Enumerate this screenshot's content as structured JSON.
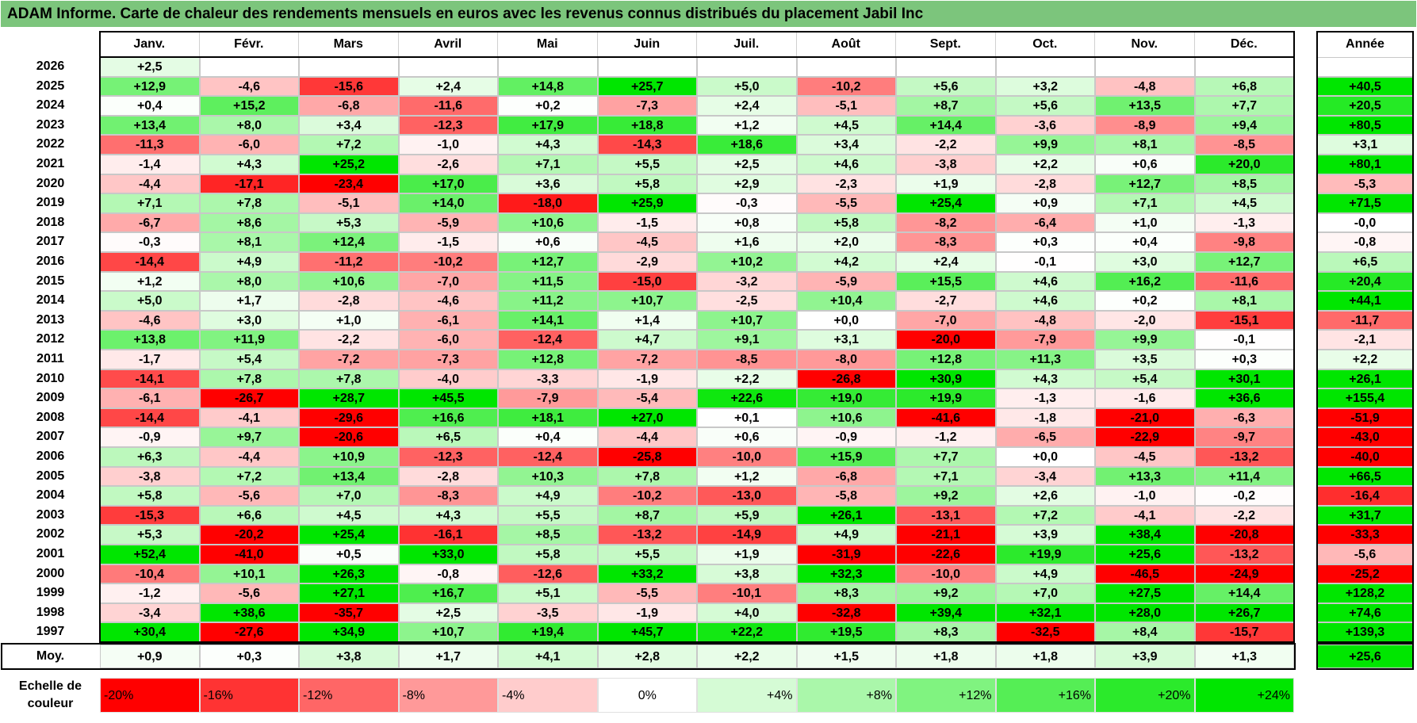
{
  "title": "ADAM Informe. Carte de chaleur des rendements mensuels en euros avec les revenus connus distribués du placement Jabil Inc",
  "chart_data": {
    "type": "heatmap",
    "columns": [
      "Janv.",
      "Févr.",
      "Mars",
      "Avril",
      "Mai",
      "Juin",
      "Juil.",
      "Août",
      "Sept.",
      "Oct.",
      "Nov.",
      "Déc."
    ],
    "year_column_label": "Année",
    "rows": [
      {
        "year": "2026",
        "values": [
          "+2,5",
          null,
          null,
          null,
          null,
          null,
          null,
          null,
          null,
          null,
          null,
          null
        ],
        "annual": null
      },
      {
        "year": "2025",
        "values": [
          "+12,9",
          "-4,6",
          "-15,6",
          "+2,4",
          "+14,8",
          "+25,7",
          "+5,0",
          "-10,2",
          "+5,6",
          "+3,2",
          "-4,8",
          "+6,8"
        ],
        "annual": "+40,5"
      },
      {
        "year": "2024",
        "values": [
          "+0,4",
          "+15,2",
          "-6,8",
          "-11,6",
          "+0,2",
          "-7,3",
          "+2,4",
          "-5,1",
          "+8,7",
          "+5,6",
          "+13,5",
          "+7,7"
        ],
        "annual": "+20,5"
      },
      {
        "year": "2023",
        "values": [
          "+13,4",
          "+8,0",
          "+3,4",
          "-12,3",
          "+17,9",
          "+18,8",
          "+1,2",
          "+4,5",
          "+14,4",
          "-3,6",
          "-8,9",
          "+9,4"
        ],
        "annual": "+80,5"
      },
      {
        "year": "2022",
        "values": [
          "-11,3",
          "-6,0",
          "+7,2",
          "-1,0",
          "+4,3",
          "-14,3",
          "+18,6",
          "+3,4",
          "-2,2",
          "+9,9",
          "+8,1",
          "-8,5"
        ],
        "annual": "+3,1"
      },
      {
        "year": "2021",
        "values": [
          "-1,4",
          "+4,3",
          "+25,2",
          "-2,6",
          "+7,1",
          "+5,5",
          "+2,5",
          "+4,6",
          "-3,8",
          "+2,2",
          "+0,6",
          "+20,0"
        ],
        "annual": "+80,1"
      },
      {
        "year": "2020",
        "values": [
          "-4,4",
          "-17,1",
          "-23,4",
          "+17,0",
          "+3,6",
          "+5,8",
          "+2,9",
          "-2,3",
          "+1,9",
          "-2,8",
          "+12,7",
          "+8,5"
        ],
        "annual": "-5,3"
      },
      {
        "year": "2019",
        "values": [
          "+7,1",
          "+7,8",
          "-5,1",
          "+14,0",
          "-18,0",
          "+25,9",
          "-0,3",
          "-5,5",
          "+25,4",
          "+0,9",
          "+7,1",
          "+4,5"
        ],
        "annual": "+71,5"
      },
      {
        "year": "2018",
        "values": [
          "-6,7",
          "+8,6",
          "+5,3",
          "-5,9",
          "+10,6",
          "-1,5",
          "+0,8",
          "+5,8",
          "-8,2",
          "-6,4",
          "+1,0",
          "-1,3"
        ],
        "annual": "-0,0"
      },
      {
        "year": "2017",
        "values": [
          "-0,3",
          "+8,1",
          "+12,4",
          "-1,5",
          "+0,6",
          "-4,5",
          "+1,6",
          "+2,0",
          "-8,3",
          "+0,3",
          "+0,4",
          "-9,8"
        ],
        "annual": "-0,8"
      },
      {
        "year": "2016",
        "values": [
          "-14,4",
          "+4,9",
          "-11,2",
          "-10,2",
          "+12,7",
          "-2,9",
          "+10,2",
          "+4,2",
          "+2,4",
          "-0,1",
          "+3,0",
          "+12,7"
        ],
        "annual": "+6,5"
      },
      {
        "year": "2015",
        "values": [
          "+1,2",
          "+8,0",
          "+10,6",
          "-7,0",
          "+11,5",
          "-15,0",
          "-3,2",
          "-5,9",
          "+15,5",
          "+4,6",
          "+16,2",
          "-11,6"
        ],
        "annual": "+20,4"
      },
      {
        "year": "2014",
        "values": [
          "+5,0",
          "+1,7",
          "-2,8",
          "-4,6",
          "+11,2",
          "+10,7",
          "-2,5",
          "+10,4",
          "-2,7",
          "+4,6",
          "+0,2",
          "+8,1"
        ],
        "annual": "+44,1"
      },
      {
        "year": "2013",
        "values": [
          "-4,6",
          "+3,0",
          "+1,0",
          "-6,1",
          "+14,1",
          "+1,4",
          "+10,7",
          "+0,0",
          "-7,0",
          "-4,8",
          "-2,0",
          "-15,1"
        ],
        "annual": "-11,7"
      },
      {
        "year": "2012",
        "values": [
          "+13,8",
          "+11,9",
          "-2,2",
          "-6,0",
          "-12,4",
          "+4,7",
          "+9,1",
          "+3,1",
          "-20,0",
          "-7,9",
          "+9,9",
          "-0,1"
        ],
        "annual": "-2,1"
      },
      {
        "year": "2011",
        "values": [
          "-1,7",
          "+5,4",
          "-7,2",
          "-7,3",
          "+12,8",
          "-7,2",
          "-8,5",
          "-8,0",
          "+12,8",
          "+11,3",
          "+3,5",
          "+0,3"
        ],
        "annual": "+2,2"
      },
      {
        "year": "2010",
        "values": [
          "-14,1",
          "+7,8",
          "+7,8",
          "-4,0",
          "-3,3",
          "-1,9",
          "+2,2",
          "-26,8",
          "+30,9",
          "+4,3",
          "+5,4",
          "+30,1"
        ],
        "annual": "+26,1"
      },
      {
        "year": "2009",
        "values": [
          "-6,1",
          "-26,7",
          "+28,7",
          "+45,5",
          "-7,9",
          "-5,4",
          "+22,6",
          "+19,0",
          "+19,9",
          "-1,3",
          "-1,6",
          "+36,6"
        ],
        "annual": "+155,4"
      },
      {
        "year": "2008",
        "values": [
          "-14,4",
          "-4,1",
          "-29,6",
          "+16,6",
          "+18,1",
          "+27,0",
          "+0,1",
          "+10,6",
          "-41,6",
          "-1,8",
          "-21,0",
          "-6,3"
        ],
        "annual": "-51,9"
      },
      {
        "year": "2007",
        "values": [
          "-0,9",
          "+9,7",
          "-20,6",
          "+6,5",
          "+0,4",
          "-4,4",
          "+0,6",
          "-0,9",
          "-1,2",
          "-6,5",
          "-22,9",
          "-9,7"
        ],
        "annual": "-43,0"
      },
      {
        "year": "2006",
        "values": [
          "+6,3",
          "-4,4",
          "+10,9",
          "-12,3",
          "-12,4",
          "-25,8",
          "-10,0",
          "+15,9",
          "+7,7",
          "+0,0",
          "-4,5",
          "-13,2"
        ],
        "annual": "-40,0"
      },
      {
        "year": "2005",
        "values": [
          "-3,8",
          "+7,2",
          "+13,4",
          "-2,8",
          "+10,3",
          "+7,8",
          "+1,2",
          "-6,8",
          "+7,1",
          "-3,4",
          "+13,3",
          "+11,4"
        ],
        "annual": "+66,5"
      },
      {
        "year": "2004",
        "values": [
          "+5,8",
          "-5,6",
          "+7,0",
          "-8,3",
          "+4,9",
          "-10,2",
          "-13,0",
          "-5,8",
          "+9,2",
          "+2,6",
          "-1,0",
          "-0,2"
        ],
        "annual": "-16,4"
      },
      {
        "year": "2003",
        "values": [
          "-15,3",
          "+6,6",
          "+4,5",
          "+4,3",
          "+5,5",
          "+8,7",
          "+5,9",
          "+26,1",
          "-13,1",
          "+7,2",
          "-4,1",
          "-2,2"
        ],
        "annual": "+31,7"
      },
      {
        "year": "2002",
        "values": [
          "+5,3",
          "-20,2",
          "+25,4",
          "-16,1",
          "+8,5",
          "-13,2",
          "-14,9",
          "+4,9",
          "-21,1",
          "+3,9",
          "+38,4",
          "-20,8"
        ],
        "annual": "-33,3"
      },
      {
        "year": "2001",
        "values": [
          "+52,4",
          "-41,0",
          "+0,5",
          "+33,0",
          "+5,8",
          "+5,5",
          "+1,9",
          "-31,9",
          "-22,6",
          "+19,9",
          "+25,6",
          "-13,2"
        ],
        "annual": "-5,6"
      },
      {
        "year": "2000",
        "values": [
          "-10,4",
          "+10,1",
          "+26,3",
          "-0,8",
          "-12,6",
          "+33,2",
          "+3,8",
          "+32,3",
          "-10,0",
          "+4,9",
          "-46,5",
          "-24,9"
        ],
        "annual": "-25,2"
      },
      {
        "year": "1999",
        "values": [
          "-1,2",
          "-5,6",
          "+27,1",
          "+16,7",
          "+5,1",
          "-5,5",
          "-10,1",
          "+8,3",
          "+9,2",
          "+7,0",
          "+27,5",
          "+14,4"
        ],
        "annual": "+128,2"
      },
      {
        "year": "1998",
        "values": [
          "-3,4",
          "+38,6",
          "-35,7",
          "+2,5",
          "-3,5",
          "-1,9",
          "+4,0",
          "-32,8",
          "+39,4",
          "+32,1",
          "+28,0",
          "+26,7"
        ],
        "annual": "+74,6"
      },
      {
        "year": "1997",
        "values": [
          "+30,4",
          "-27,6",
          "+34,9",
          "+10,7",
          "+19,4",
          "+45,7",
          "+22,2",
          "+19,5",
          "+8,3",
          "-32,5",
          "+8,4",
          "-15,7"
        ],
        "annual": "+139,3"
      }
    ],
    "average": {
      "label": "Moy.",
      "values": [
        "+0,9",
        "+0,3",
        "+3,8",
        "+1,7",
        "+4,1",
        "+2,8",
        "+2,2",
        "+1,5",
        "+1,8",
        "+1,8",
        "+3,9",
        "+1,3"
      ],
      "annual": "+25,6"
    },
    "scale": {
      "label_line1": "Echelle de",
      "label_line2": "couleur",
      "steps": [
        "-20%",
        "-16%",
        "-12%",
        "-8%",
        "-4%",
        "0%",
        "+4%",
        "+8%",
        "+12%",
        "+16%",
        "+20%",
        "+24%"
      ]
    },
    "colors": {
      "red_max": "#ff0000",
      "white": "#ffffff",
      "green_max": "#00e600",
      "title_bar": "#7cc57c"
    }
  }
}
